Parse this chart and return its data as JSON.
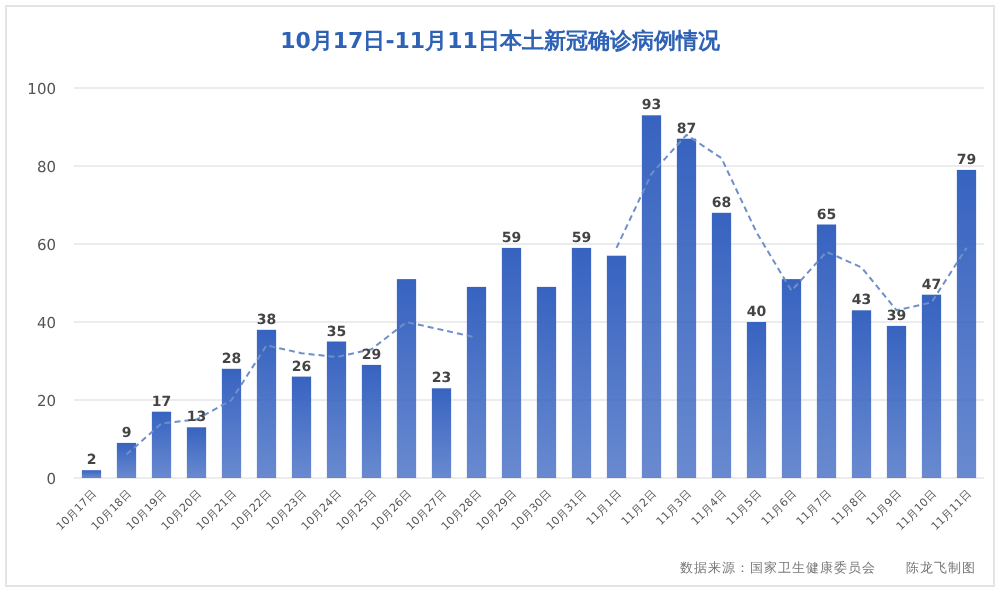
{
  "chart_data": {
    "type": "bar",
    "title": "10月17日-11月11日本土新冠确诊病例情况",
    "categories": [
      "10月17日",
      "10月18日",
      "10月19日",
      "10月20日",
      "10月21日",
      "10月22日",
      "10月23日",
      "10月24日",
      "10月25日",
      "10月26日",
      "10月27日",
      "10月28日",
      "10月29日",
      "10月30日",
      "10月31日",
      "11月1日",
      "11月2日",
      "11月3日",
      "11月4日",
      "11月5日",
      "11月6日",
      "11月7日",
      "11月8日",
      "11月9日",
      "11月10日",
      "11月11日"
    ],
    "series": [
      {
        "color": "#3763c0",
        "values": [
          2,
          9,
          17,
          13,
          28,
          38,
          26,
          35,
          29,
          51,
          23,
          49,
          59,
          49,
          59,
          57,
          93,
          87,
          68,
          40,
          51,
          65,
          43,
          39,
          47,
          79
        ],
        "value_labels": [
          "2",
          "9",
          "17",
          "13",
          "28",
          "38",
          "26",
          "35",
          "29",
          null,
          "23",
          null,
          "59",
          null,
          "59",
          null,
          "93",
          "87",
          "68",
          "40",
          null,
          "65",
          "43",
          "39",
          "47",
          "79"
        ]
      },
      {
        "type": "line",
        "color": "#6f8fc8",
        "line_style": "dashed",
        "values": [
          null,
          6,
          14,
          15,
          20,
          34,
          32,
          31,
          33,
          40,
          38,
          36,
          null,
          null,
          null,
          59,
          78,
          88,
          82,
          63,
          48,
          58,
          54,
          43,
          45,
          59
        ]
      }
    ],
    "ylim": [
      0,
      100
    ],
    "yticks": [
      0,
      20,
      40,
      60,
      80,
      100
    ],
    "grid": "y",
    "annotations": [
      "数据来源：国家卫生健康委员会",
      "陈龙飞制图"
    ]
  }
}
